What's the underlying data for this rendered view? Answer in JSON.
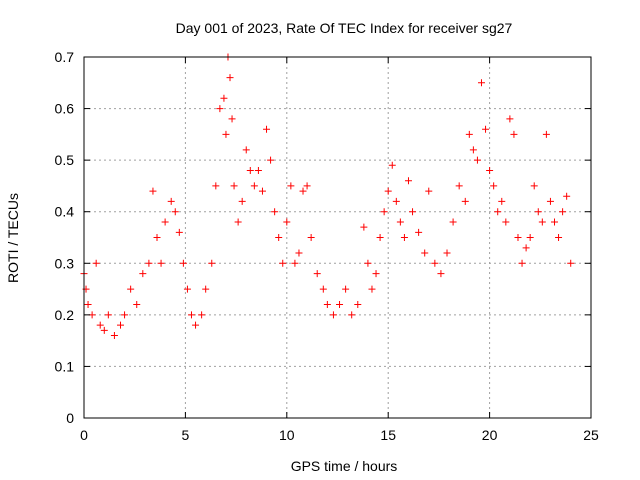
{
  "chart_data": {
    "type": "scatter",
    "title": "Day 001 of 2023, Rate Of TEC Index for receiver sg27",
    "xlabel": "GPS time / hours",
    "ylabel": "ROTI / TECUs",
    "xlim": [
      0,
      25
    ],
    "ylim": [
      0,
      0.7
    ],
    "xticks": [
      "0",
      "5",
      "10",
      "15",
      "20",
      "25"
    ],
    "yticks": [
      "0",
      "0.1",
      "0.2",
      "0.3",
      "0.4",
      "0.5",
      "0.6",
      "0.7"
    ],
    "grid": true,
    "marker": "+",
    "series": [
      {
        "color": "#ff0000",
        "x": [
          0.0,
          0.1,
          0.2,
          0.4,
          0.6,
          0.8,
          1.0,
          1.2,
          1.5,
          1.8,
          2.0,
          2.3,
          2.6,
          2.9,
          3.2,
          3.4,
          3.6,
          3.8,
          4.0,
          4.3,
          4.5,
          4.7,
          4.9,
          5.1,
          5.3,
          5.5,
          5.8,
          6.0,
          6.3,
          6.5,
          6.7,
          6.9,
          7.0,
          7.1,
          7.2,
          7.3,
          7.4,
          7.6,
          7.8,
          8.0,
          8.2,
          8.4,
          8.6,
          8.8,
          9.0,
          9.2,
          9.4,
          9.6,
          9.8,
          10.0,
          10.2,
          10.4,
          10.6,
          10.8,
          11.0,
          11.2,
          11.5,
          11.8,
          12.0,
          12.3,
          12.6,
          12.9,
          13.2,
          13.5,
          13.8,
          14.0,
          14.2,
          14.4,
          14.6,
          14.8,
          15.0,
          15.2,
          15.4,
          15.6,
          15.8,
          16.0,
          16.2,
          16.5,
          16.8,
          17.0,
          17.3,
          17.6,
          17.9,
          18.2,
          18.5,
          18.8,
          19.0,
          19.2,
          19.4,
          19.6,
          19.8,
          20.0,
          20.2,
          20.4,
          20.6,
          20.8,
          21.0,
          21.2,
          21.4,
          21.6,
          21.8,
          22.0,
          22.2,
          22.4,
          22.6,
          22.8,
          23.0,
          23.2,
          23.4,
          23.6,
          23.8,
          24.0
        ],
        "y": [
          0.28,
          0.25,
          0.22,
          0.2,
          0.3,
          0.18,
          0.17,
          0.2,
          0.16,
          0.18,
          0.2,
          0.25,
          0.22,
          0.28,
          0.3,
          0.44,
          0.35,
          0.3,
          0.38,
          0.42,
          0.4,
          0.36,
          0.3,
          0.25,
          0.2,
          0.18,
          0.2,
          0.25,
          0.3,
          0.45,
          0.6,
          0.62,
          0.55,
          0.7,
          0.66,
          0.58,
          0.45,
          0.38,
          0.42,
          0.52,
          0.48,
          0.45,
          0.48,
          0.44,
          0.56,
          0.5,
          0.4,
          0.35,
          0.3,
          0.38,
          0.45,
          0.3,
          0.32,
          0.44,
          0.45,
          0.35,
          0.28,
          0.25,
          0.22,
          0.2,
          0.22,
          0.25,
          0.2,
          0.22,
          0.37,
          0.3,
          0.25,
          0.28,
          0.35,
          0.4,
          0.44,
          0.49,
          0.42,
          0.38,
          0.35,
          0.46,
          0.4,
          0.36,
          0.32,
          0.44,
          0.3,
          0.28,
          0.32,
          0.38,
          0.45,
          0.42,
          0.55,
          0.52,
          0.5,
          0.65,
          0.56,
          0.48,
          0.45,
          0.4,
          0.42,
          0.38,
          0.58,
          0.55,
          0.35,
          0.3,
          0.33,
          0.35,
          0.45,
          0.4,
          0.38,
          0.55,
          0.42,
          0.38,
          0.35,
          0.4,
          0.43,
          0.3
        ]
      }
    ]
  }
}
